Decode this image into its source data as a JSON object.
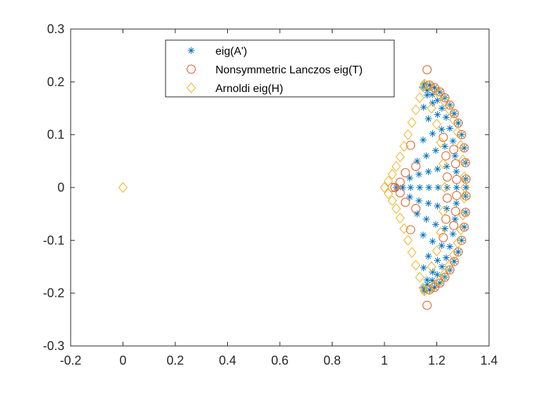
{
  "chart_data": {
    "type": "scatter",
    "title": "",
    "xlabel": "",
    "ylabel": "",
    "xlim": [
      -0.2,
      1.4
    ],
    "ylim": [
      -0.3,
      0.3
    ],
    "xticks": [
      -0.2,
      0,
      0.2,
      0.4,
      0.6,
      0.8,
      1,
      1.2,
      1.4
    ],
    "xtick_labels": [
      "-0.2",
      "0",
      "0.2",
      "0.4",
      "0.6",
      "0.8",
      "1",
      "1.2",
      "1.4"
    ],
    "yticks": [
      -0.3,
      -0.2,
      -0.1,
      0,
      0.1,
      0.2,
      0.3
    ],
    "ytick_labels": [
      "-0.3",
      "-0.2",
      "-0.1",
      "0",
      "0.1",
      "0.2",
      "0.3"
    ],
    "grid": false,
    "legend_position": "top-center",
    "series": [
      {
        "name": "eig(A')",
        "marker": "asterisk",
        "color": "#0072BD",
        "points": [
          [
            1.312,
            0.0
          ],
          [
            1.311,
            0.016
          ],
          [
            1.311,
            -0.016
          ],
          [
            1.31,
            0.047
          ],
          [
            1.31,
            -0.047
          ],
          [
            1.305,
            0.075
          ],
          [
            1.305,
            -0.075
          ],
          [
            1.295,
            0.1
          ],
          [
            1.295,
            -0.1
          ],
          [
            1.282,
            0.122
          ],
          [
            1.282,
            -0.122
          ],
          [
            1.267,
            0.14
          ],
          [
            1.267,
            -0.14
          ],
          [
            1.25,
            0.156
          ],
          [
            1.25,
            -0.156
          ],
          [
            1.231,
            0.17
          ],
          [
            1.231,
            -0.17
          ],
          [
            1.212,
            0.181
          ],
          [
            1.212,
            -0.181
          ],
          [
            1.192,
            0.189
          ],
          [
            1.192,
            -0.189
          ],
          [
            1.172,
            0.194
          ],
          [
            1.172,
            -0.194
          ],
          [
            1.152,
            0.196
          ],
          [
            1.152,
            -0.196
          ],
          [
            1.276,
            0.0
          ],
          [
            1.275,
            0.03
          ],
          [
            1.275,
            -0.03
          ],
          [
            1.27,
            0.06
          ],
          [
            1.27,
            -0.06
          ],
          [
            1.262,
            0.088
          ],
          [
            1.262,
            -0.088
          ],
          [
            1.25,
            0.112
          ],
          [
            1.25,
            -0.112
          ],
          [
            1.236,
            0.133
          ],
          [
            1.236,
            -0.133
          ],
          [
            1.22,
            0.15
          ],
          [
            1.22,
            -0.15
          ],
          [
            1.202,
            0.165
          ],
          [
            1.202,
            -0.165
          ],
          [
            1.183,
            0.176
          ],
          [
            1.183,
            -0.176
          ],
          [
            1.164,
            0.184
          ],
          [
            1.164,
            -0.184
          ],
          [
            1.148,
            0.19
          ],
          [
            1.148,
            -0.19
          ],
          [
            1.24,
            0.0
          ],
          [
            1.238,
            0.04
          ],
          [
            1.238,
            -0.04
          ],
          [
            1.231,
            0.078
          ],
          [
            1.231,
            -0.078
          ],
          [
            1.219,
            0.11
          ],
          [
            1.219,
            -0.11
          ],
          [
            1.203,
            0.138
          ],
          [
            1.203,
            -0.138
          ],
          [
            1.184,
            0.16
          ],
          [
            1.184,
            -0.16
          ],
          [
            1.163,
            0.175
          ],
          [
            1.163,
            -0.175
          ],
          [
            1.205,
            0.0
          ],
          [
            1.203,
            0.035
          ],
          [
            1.203,
            -0.035
          ],
          [
            1.196,
            0.07
          ],
          [
            1.196,
            -0.07
          ],
          [
            1.184,
            0.102
          ],
          [
            1.184,
            -0.102
          ],
          [
            1.168,
            0.13
          ],
          [
            1.168,
            -0.13
          ],
          [
            1.15,
            0.152
          ],
          [
            1.15,
            -0.152
          ],
          [
            1.17,
            0.0
          ],
          [
            1.168,
            0.03
          ],
          [
            1.168,
            -0.03
          ],
          [
            1.16,
            0.06
          ],
          [
            1.16,
            -0.06
          ],
          [
            1.148,
            0.09
          ],
          [
            1.148,
            -0.09
          ],
          [
            1.135,
            0.0
          ],
          [
            1.132,
            0.025
          ],
          [
            1.132,
            -0.025
          ],
          [
            1.125,
            0.05
          ],
          [
            1.125,
            -0.05
          ],
          [
            1.1,
            0.0
          ],
          [
            1.097,
            0.018
          ],
          [
            1.097,
            -0.018
          ],
          [
            1.07,
            0.0
          ],
          [
            1.045,
            0.0
          ]
        ]
      },
      {
        "name": "Nonsymmetric Lanczos eig(T)",
        "marker": "circle",
        "color": "#D95319",
        "points": [
          [
            1.163,
            0.223
          ],
          [
            1.163,
            -0.223
          ],
          [
            1.312,
            0.016
          ],
          [
            1.312,
            -0.016
          ],
          [
            1.31,
            0.047
          ],
          [
            1.31,
            -0.047
          ],
          [
            1.305,
            0.075
          ],
          [
            1.305,
            -0.075
          ],
          [
            1.295,
            0.1
          ],
          [
            1.295,
            -0.1
          ],
          [
            1.282,
            0.122
          ],
          [
            1.282,
            -0.122
          ],
          [
            1.267,
            0.14
          ],
          [
            1.267,
            -0.14
          ],
          [
            1.25,
            0.156
          ],
          [
            1.25,
            -0.156
          ],
          [
            1.231,
            0.17
          ],
          [
            1.231,
            -0.17
          ],
          [
            1.212,
            0.181
          ],
          [
            1.212,
            -0.181
          ],
          [
            1.192,
            0.189
          ],
          [
            1.192,
            -0.189
          ],
          [
            1.172,
            0.194
          ],
          [
            1.172,
            -0.194
          ],
          [
            1.276,
            0.015
          ],
          [
            1.276,
            -0.015
          ],
          [
            1.272,
            0.045
          ],
          [
            1.272,
            -0.045
          ],
          [
            1.265,
            0.072
          ],
          [
            1.265,
            -0.072
          ],
          [
            1.24,
            0.02
          ],
          [
            1.24,
            -0.02
          ],
          [
            1.235,
            0.06
          ],
          [
            1.235,
            -0.06
          ],
          [
            1.225,
            0.095
          ],
          [
            1.225,
            -0.095
          ],
          [
            1.12,
            0.04
          ],
          [
            1.12,
            -0.04
          ],
          [
            1.1,
            0.08
          ],
          [
            1.1,
            -0.08
          ],
          [
            1.08,
            0.028
          ],
          [
            1.08,
            -0.028
          ],
          [
            1.06,
            0.01
          ],
          [
            1.06,
            -0.01
          ],
          [
            1.04,
            0.0
          ],
          [
            1.03,
            0.0
          ]
        ]
      },
      {
        "name": "Arnoldi eig(H)",
        "marker": "diamond",
        "color": "#EDB120",
        "points": [
          [
            0.0,
            0.0
          ],
          [
            1.0,
            0.0
          ],
          [
            1.015,
            0.012
          ],
          [
            1.015,
            -0.012
          ],
          [
            1.03,
            0.025
          ],
          [
            1.03,
            -0.025
          ],
          [
            1.045,
            0.04
          ],
          [
            1.045,
            -0.04
          ],
          [
            1.06,
            0.058
          ],
          [
            1.06,
            -0.058
          ],
          [
            1.075,
            0.078
          ],
          [
            1.075,
            -0.078
          ],
          [
            1.09,
            0.1
          ],
          [
            1.09,
            -0.1
          ],
          [
            1.105,
            0.123
          ],
          [
            1.105,
            -0.123
          ],
          [
            1.12,
            0.147
          ],
          [
            1.12,
            -0.147
          ],
          [
            1.135,
            0.17
          ],
          [
            1.135,
            -0.17
          ],
          [
            1.148,
            0.19
          ],
          [
            1.148,
            -0.19
          ],
          [
            1.153,
            0.196
          ],
          [
            1.153,
            -0.196
          ],
          [
            1.17,
            0.193
          ],
          [
            1.17,
            -0.193
          ],
          [
            1.19,
            0.186
          ],
          [
            1.19,
            -0.186
          ],
          [
            1.21,
            0.176
          ],
          [
            1.21,
            -0.176
          ],
          [
            1.23,
            0.163
          ],
          [
            1.23,
            -0.163
          ],
          [
            1.248,
            0.147
          ],
          [
            1.248,
            -0.147
          ],
          [
            1.265,
            0.128
          ],
          [
            1.265,
            -0.128
          ],
          [
            1.28,
            0.105
          ],
          [
            1.28,
            -0.105
          ],
          [
            1.292,
            0.08
          ],
          [
            1.292,
            -0.08
          ],
          [
            1.3,
            0.052
          ],
          [
            1.3,
            -0.052
          ],
          [
            1.305,
            0.02
          ],
          [
            1.305,
            -0.02
          ],
          [
            1.308,
            0.0
          ],
          [
            1.18,
            0.15
          ],
          [
            1.18,
            -0.15
          ],
          [
            1.2,
            0.12
          ],
          [
            1.2,
            -0.12
          ],
          [
            1.215,
            0.085
          ],
          [
            1.215,
            -0.085
          ],
          [
            1.225,
            0.045
          ],
          [
            1.225,
            -0.045
          ],
          [
            1.23,
            0.0
          ]
        ]
      }
    ]
  }
}
